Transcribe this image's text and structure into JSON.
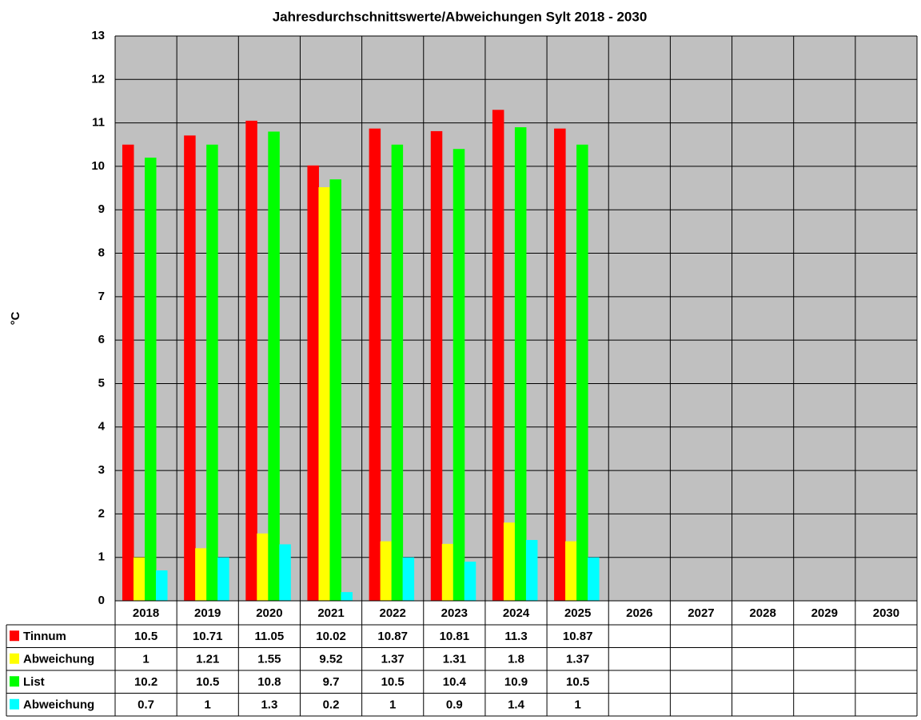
{
  "chart_data": {
    "type": "bar",
    "title": "Jahresdurchschnittswerte/Abweichungen Sylt 2018 - 2030",
    "y_label": "°C",
    "categories": [
      "2018",
      "2019",
      "2020",
      "2021",
      "2022",
      "2023",
      "2024",
      "2025",
      "2026",
      "2027",
      "2028",
      "2029",
      "2030"
    ],
    "series": [
      {
        "name": "Tinnum",
        "color": "#ff0000",
        "values": [
          10.5,
          10.71,
          11.05,
          10.02,
          10.87,
          10.81,
          11.3,
          10.87,
          null,
          null,
          null,
          null,
          null
        ]
      },
      {
        "name": "Abweichung",
        "color": "#ffff00",
        "values": [
          1,
          1.21,
          1.55,
          9.52,
          1.37,
          1.31,
          1.8,
          1.37,
          null,
          null,
          null,
          null,
          null
        ]
      },
      {
        "name": "List",
        "color": "#00ff00",
        "values": [
          10.2,
          10.5,
          10.8,
          9.7,
          10.5,
          10.4,
          10.9,
          10.5,
          null,
          null,
          null,
          null,
          null
        ]
      },
      {
        "name": "Abweichung",
        "color": "#00ffff",
        "values": [
          0.7,
          1,
          1.3,
          0.2,
          1,
          0.9,
          1.4,
          1,
          null,
          null,
          null,
          null,
          null
        ]
      }
    ],
    "ylim": [
      0,
      13
    ],
    "yticks": [
      0,
      1,
      2,
      3,
      4,
      5,
      6,
      7,
      8,
      9,
      10,
      11,
      12,
      13
    ],
    "grid": true
  }
}
